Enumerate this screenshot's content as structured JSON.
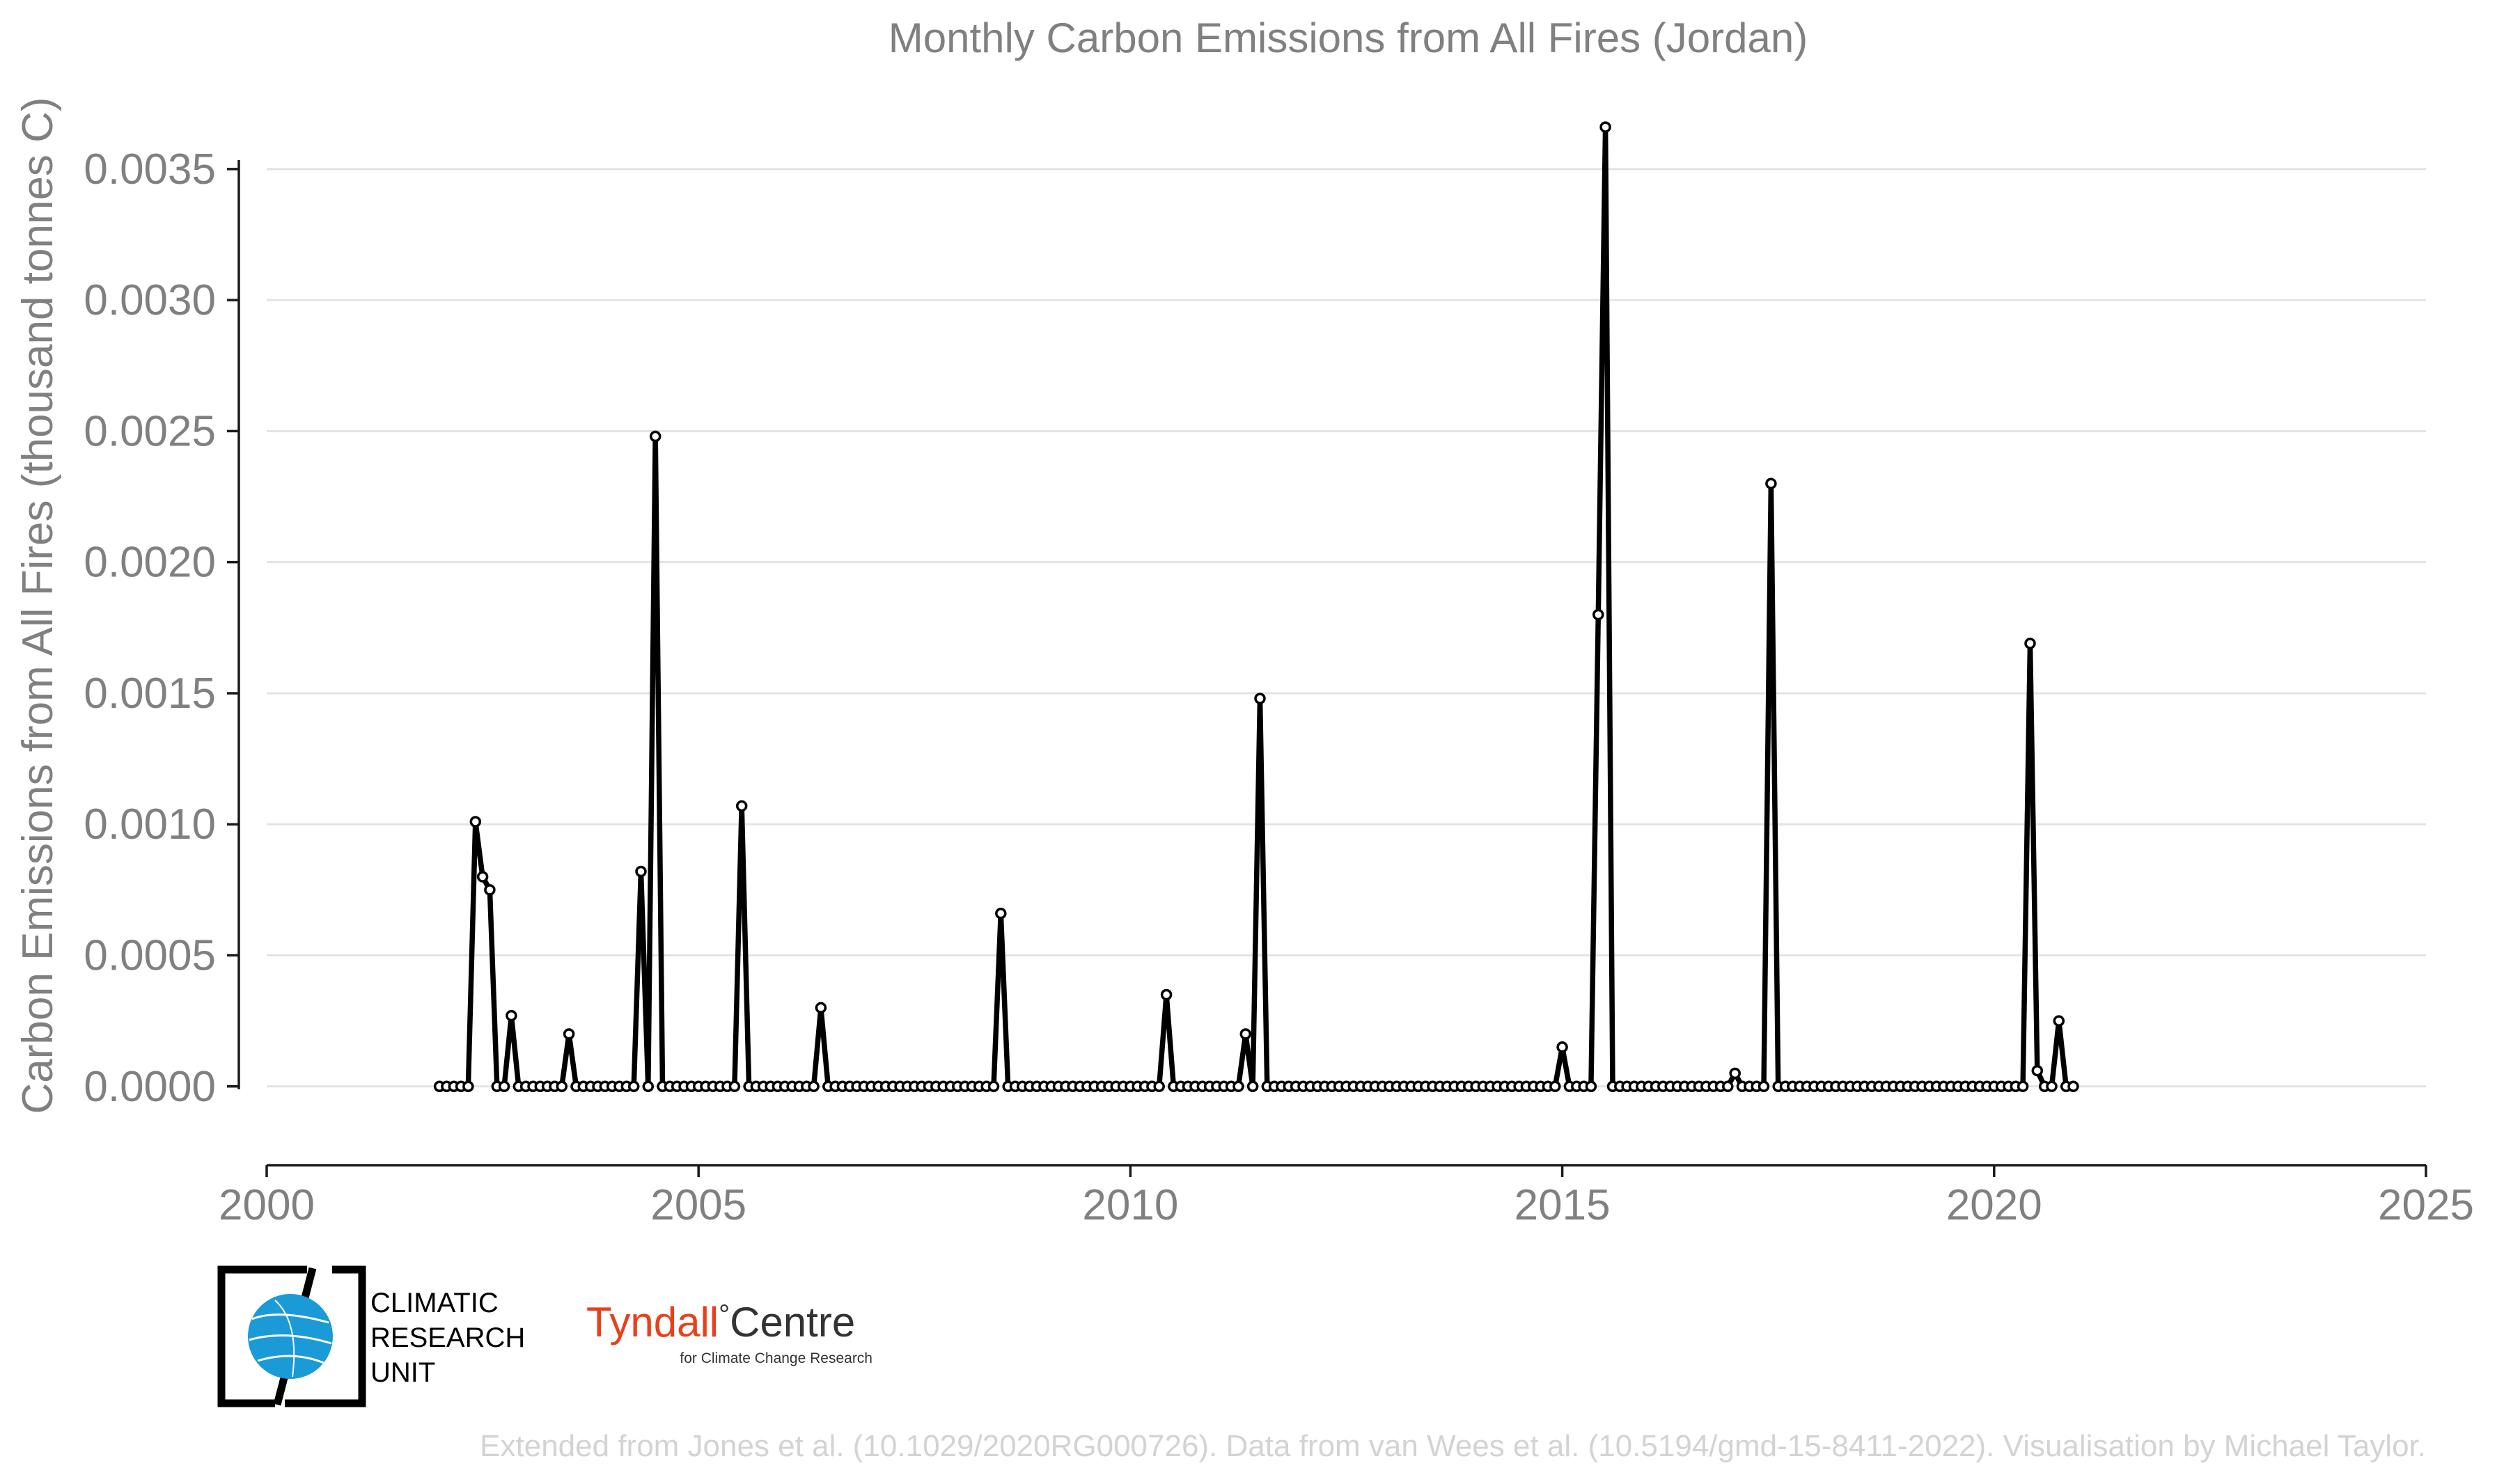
{
  "chart_data": {
    "type": "line",
    "title": "Monthly Carbon Emissions from All Fires (Jordan)",
    "ylabel": "Carbon Emissions from All Fires (thousand tonnes C)",
    "xlabel": "",
    "xlim": [
      2000,
      2025
    ],
    "ylim": [
      -0.00029,
      0.00372
    ],
    "xticks": [
      "2000",
      "2005",
      "2010",
      "2015",
      "2020",
      "2025"
    ],
    "yticks": [
      "0.0000",
      "0.0005",
      "0.0010",
      "0.0015",
      "0.0020",
      "0.0025",
      "0.0030",
      "0.0035"
    ],
    "grid": true,
    "legend": "none",
    "start_month": "2002-01",
    "series": [
      {
        "values": [
          0,
          0,
          0,
          0,
          0,
          0.00101,
          0.0008,
          0.00075,
          0,
          0,
          0.00027,
          0,
          0,
          0,
          0,
          0,
          0,
          0,
          0.0002,
          0,
          0,
          0,
          0,
          0,
          0,
          0,
          0,
          0,
          0.00082,
          0,
          0.00248,
          0,
          0,
          0,
          0,
          0,
          0,
          0,
          0,
          0,
          0,
          0,
          0.00107,
          0,
          0,
          0,
          0,
          0,
          0,
          0,
          0,
          0,
          0,
          0.0003,
          0,
          0,
          0,
          0,
          0,
          0,
          0,
          0,
          0,
          0,
          0,
          0,
          0,
          0,
          0,
          0,
          0,
          0,
          0,
          0,
          0,
          0,
          0,
          0,
          0.00066,
          0,
          0,
          0,
          0,
          0,
          0,
          0,
          0,
          0,
          0,
          0,
          0,
          0,
          0,
          0,
          0,
          0,
          0,
          0,
          0,
          0,
          0,
          0.00035,
          0,
          0,
          0,
          0,
          0,
          0,
          0,
          0,
          0,
          0,
          0.0002,
          0,
          0.00148,
          0,
          0,
          0,
          0,
          0,
          0,
          0,
          0,
          0,
          0,
          0,
          0,
          0,
          0,
          0,
          0,
          0,
          0,
          0,
          0,
          0,
          0,
          0,
          0,
          0,
          0,
          0,
          0,
          0,
          0,
          0,
          0,
          0,
          0,
          0,
          0,
          0,
          0,
          0,
          0,
          0,
          0.00015,
          0,
          0,
          0,
          0,
          0.0018,
          0.00366,
          0,
          0,
          0,
          0,
          0,
          0,
          0,
          0,
          0,
          0,
          0,
          0,
          0,
          0,
          0,
          0,
          0,
          5e-05,
          0,
          0,
          0,
          0,
          0.0023,
          0,
          0,
          0,
          0,
          0,
          0,
          0,
          0,
          0,
          0,
          0,
          0,
          0,
          0,
          0,
          0,
          0,
          0,
          0,
          0,
          0,
          0,
          0,
          0,
          0,
          0,
          0,
          0,
          0,
          0,
          0,
          0,
          0,
          0,
          0,
          0.00169,
          6e-05,
          0,
          0,
          0.00025,
          0,
          0
        ]
      }
    ]
  },
  "logos": {
    "cru_line1": "CLIMATIC",
    "cru_line2": "RESEARCH",
    "cru_line3": "UNIT",
    "tyndall_name": "Tyndall",
    "tyndall_degree": "°",
    "tyndall_centre": "Centre",
    "tyndall_sub": "for Climate Change Research",
    "tyndall_color": "#e8401c",
    "cru_globe_color": "#1a9ad6"
  },
  "credit": "Extended from Jones et al. (10.1029/2020RG000726). Data from van Wees et al. (10.5194/gmd-15-8411-2022). Visualisation by Michael Taylor."
}
